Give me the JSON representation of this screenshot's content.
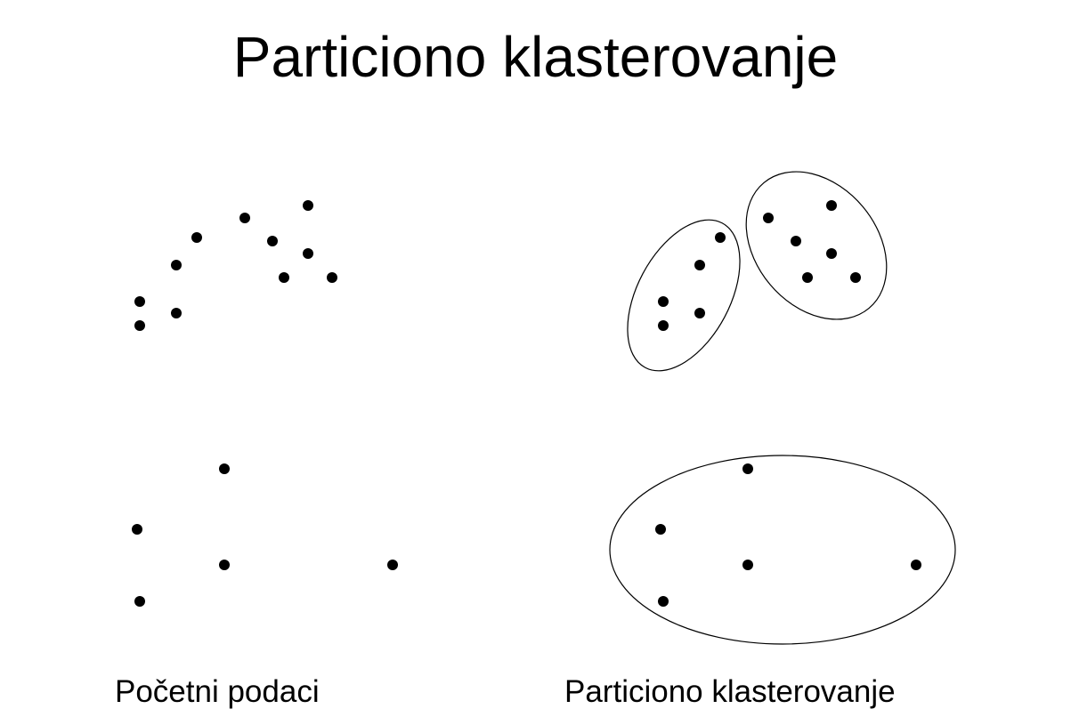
{
  "title": "Particiono klasterovanje",
  "captions": {
    "left": "Početni podaci",
    "right": "Particiono klasterovanje"
  },
  "colors": {
    "point": "#000000",
    "cluster_outline": "#000000",
    "background": "#ffffff"
  },
  "panels": {
    "initial_data": {
      "points": [
        [
          157,
          339
        ],
        [
          157,
          366
        ],
        [
          198,
          352
        ],
        [
          198,
          298
        ],
        [
          221,
          267
        ],
        [
          275,
          245
        ],
        [
          306,
          271
        ],
        [
          346,
          231
        ],
        [
          346,
          285
        ],
        [
          319,
          312
        ],
        [
          373,
          312
        ],
        [
          252,
          527
        ],
        [
          154,
          595
        ],
        [
          252,
          635
        ],
        [
          441,
          635
        ],
        [
          157,
          676
        ]
      ]
    },
    "partitional_clustering": {
      "clusters": [
        {
          "points": [
            [
              745,
              339
            ],
            [
              745,
              366
            ],
            [
              786,
              352
            ],
            [
              786,
              298
            ],
            [
              809,
              267
            ]
          ]
        },
        {
          "points": [
            [
              863,
              245
            ],
            [
              894,
              271
            ],
            [
              934,
              231
            ],
            [
              934,
              285
            ],
            [
              907,
              312
            ],
            [
              961,
              312
            ]
          ]
        },
        {
          "points": [
            [
              840,
              527
            ],
            [
              742,
              595
            ],
            [
              840,
              635
            ],
            [
              1029,
              635
            ],
            [
              745,
              676
            ]
          ]
        }
      ]
    }
  }
}
